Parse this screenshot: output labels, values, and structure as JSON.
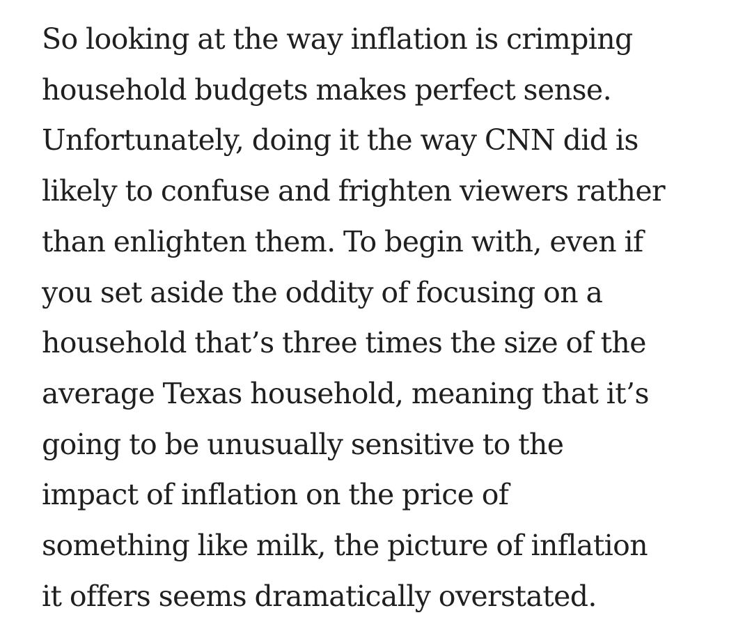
{
  "article": {
    "paragraph_lines": [
      "So looking at the way inflation is crimping",
      "household budgets makes perfect sense.",
      "Unfortunately, doing it the way CNN did is",
      "likely to confuse and frighten viewers rather",
      "than enlighten them. To begin with, even if",
      "you set aside the oddity of focusing on a",
      "household that’s three times the size of the",
      "average Texas household, meaning that it’s",
      "going to be unusually sensitive to the",
      "impact of inflation on the price of",
      "something like milk, the picture of inflation",
      "it offers seems dramatically overstated."
    ]
  }
}
